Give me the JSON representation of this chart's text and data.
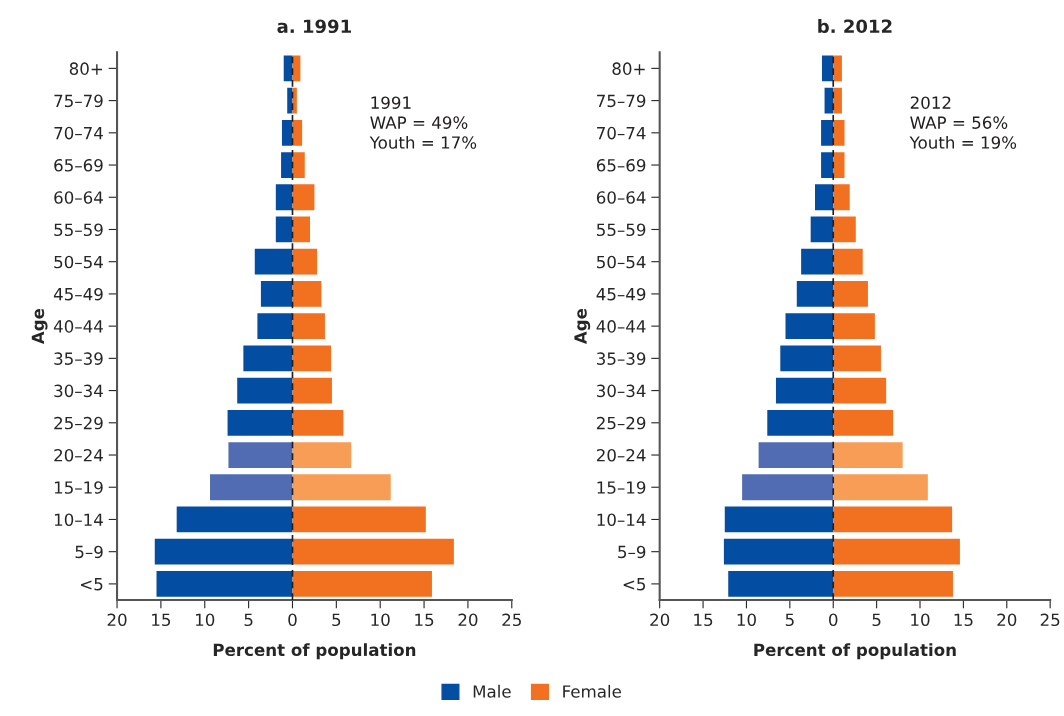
{
  "chart_data": [
    {
      "type": "bar",
      "title": "a. 1991",
      "xlabel": "Percent of population",
      "ylabel": "Age",
      "orientation": "horizontal",
      "stacked": true,
      "categories": [
        "80+",
        "75–79",
        "70–74",
        "65–69",
        "60–64",
        "55–59",
        "50–54",
        "45–49",
        "40–44",
        "35–39",
        "30–34",
        "25–29",
        "20–24",
        "15–19",
        "10–14",
        "5–9",
        "<5"
      ],
      "series": [
        {
          "name": "Male",
          "color": "#034ea2",
          "colors": [
            "#034ea2",
            "#034ea2",
            "#034ea2",
            "#034ea2",
            "#034ea2",
            "#034ea2",
            "#034ea2",
            "#034ea2",
            "#034ea2",
            "#034ea2",
            "#034ea2",
            "#034ea2",
            "#516cb3",
            "#516cb3",
            "#034ea2",
            "#034ea2",
            "#034ea2"
          ],
          "values": [
            -1.0,
            -0.6,
            -1.2,
            -1.3,
            -1.9,
            -1.9,
            -4.3,
            -3.6,
            -4.0,
            -5.6,
            -6.3,
            -7.4,
            -7.3,
            -9.4,
            -13.2,
            -15.7,
            -15.5
          ]
        },
        {
          "name": "Female",
          "color": "#f27121",
          "colors": [
            "#f27121",
            "#f27121",
            "#f27121",
            "#f27121",
            "#f27121",
            "#f27121",
            "#f27121",
            "#f27121",
            "#f27121",
            "#f27121",
            "#f27121",
            "#f27121",
            "#f79d55",
            "#f79d55",
            "#f27121",
            "#f27121",
            "#f27121"
          ],
          "values": [
            0.9,
            0.5,
            1.1,
            1.4,
            2.5,
            2.0,
            2.8,
            3.3,
            3.7,
            4.4,
            4.5,
            5.8,
            6.7,
            11.2,
            15.2,
            18.4,
            15.9
          ]
        }
      ],
      "xlim": [
        -20,
        25
      ],
      "xticks": [
        {
          "value": -20,
          "label": "20"
        },
        {
          "value": -15,
          "label": "15"
        },
        {
          "value": -10,
          "label": "10"
        },
        {
          "value": -5,
          "label": "5"
        },
        0,
        5,
        10,
        15,
        20,
        25
      ],
      "ref_lines": [
        {
          "axis": "x",
          "value": 0,
          "color": "#231f20",
          "line_style": "dashed"
        }
      ],
      "annotations": [
        "1991\nWAP = 49%\nYouth = 17%"
      ],
      "legend": "bottom",
      "grid": false
    },
    {
      "type": "bar",
      "title": "b. 2012",
      "xlabel": "Percent of population",
      "ylabel": "Age",
      "orientation": "horizontal",
      "stacked": true,
      "categories": [
        "80+",
        "75–79",
        "70–74",
        "65–69",
        "60–64",
        "55–59",
        "50–54",
        "45–49",
        "40–44",
        "35–39",
        "30–34",
        "25–29",
        "20–24",
        "15–19",
        "10–14",
        "5–9",
        "<5"
      ],
      "series": [
        {
          "colors": [
            "#034ea2",
            "#034ea2",
            "#034ea2",
            "#034ea2",
            "#034ea2",
            "#034ea2",
            "#034ea2",
            "#034ea2",
            "#034ea2",
            "#034ea2",
            "#034ea2",
            "#034ea2",
            "#516cb3",
            "#516cb3",
            "#034ea2",
            "#034ea2",
            "#034ea2"
          ],
          "values": [
            -1.3,
            -1.0,
            -1.4,
            -1.4,
            -2.1,
            -2.6,
            -3.7,
            -4.2,
            -5.5,
            -6.1,
            -6.6,
            -7.6,
            -8.6,
            -10.5,
            -12.5,
            -12.6,
            -12.1
          ]
        },
        {
          "colors": [
            "#f27121",
            "#f27121",
            "#f27121",
            "#f27121",
            "#f27121",
            "#f27121",
            "#f27121",
            "#f27121",
            "#f27121",
            "#f27121",
            "#f27121",
            "#f27121",
            "#f79d55",
            "#f79d55",
            "#f27121",
            "#f27121",
            "#f27121"
          ],
          "values": [
            1.0,
            1.0,
            1.3,
            1.3,
            1.9,
            2.6,
            3.4,
            4.0,
            4.8,
            5.5,
            6.1,
            6.9,
            8.0,
            10.9,
            13.7,
            14.6,
            13.8
          ]
        }
      ],
      "xlim": [
        -20,
        25
      ],
      "xticks": [
        {
          "value": -20,
          "label": "20"
        },
        {
          "value": -15,
          "label": "15"
        },
        {
          "value": -10,
          "label": "10"
        },
        {
          "value": -5,
          "label": "5"
        },
        0,
        5,
        10,
        15,
        20,
        25
      ],
      "ref_lines": [
        {
          "axis": "x",
          "value": 0,
          "color": "#231f20",
          "line_style": "dashed"
        }
      ],
      "annotations": [
        "2012\nWAP = 56%\nYouth = 19%"
      ],
      "grid": false
    }
  ]
}
